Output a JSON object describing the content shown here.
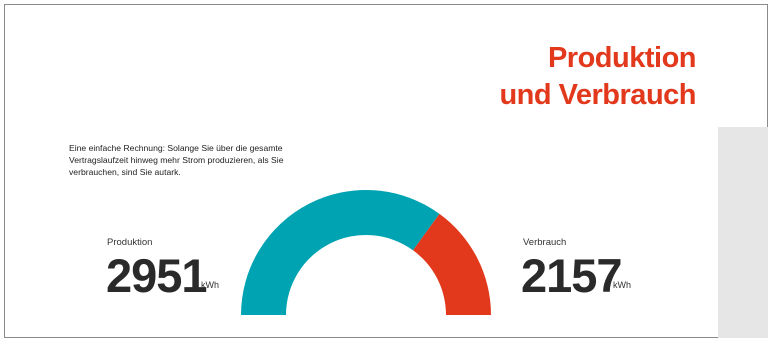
{
  "title": {
    "line1": "Produktion",
    "line2": "und Verbrauch"
  },
  "intro_text": "Eine einfache Rechnung: Solange Sie über die gesamte Vertragslaufzeit hinweg mehr Strom produzieren, als Sie verbrauchen, sind Sie autark.",
  "production": {
    "label": "Produktion",
    "value": "2951",
    "unit": "kWh"
  },
  "consumption": {
    "label": "Verbrauch",
    "value": "2157",
    "unit": "kWh"
  },
  "colors": {
    "production": "#00a3b2",
    "consumption": "#e2381b",
    "accent_title": "#e2381b",
    "side_panel": "#e6e6e6"
  },
  "chart_data": {
    "type": "pie",
    "variant": "semicircle-gauge",
    "series": [
      {
        "name": "Produktion",
        "value": 2951,
        "unit": "kWh",
        "color": "#00a3b2"
      },
      {
        "name": "Verbrauch",
        "value": 2157,
        "unit": "kWh",
        "color": "#e2381b"
      }
    ],
    "shown_split": [
      0.7,
      0.3
    ],
    "title": "Produktion und Verbrauch"
  }
}
